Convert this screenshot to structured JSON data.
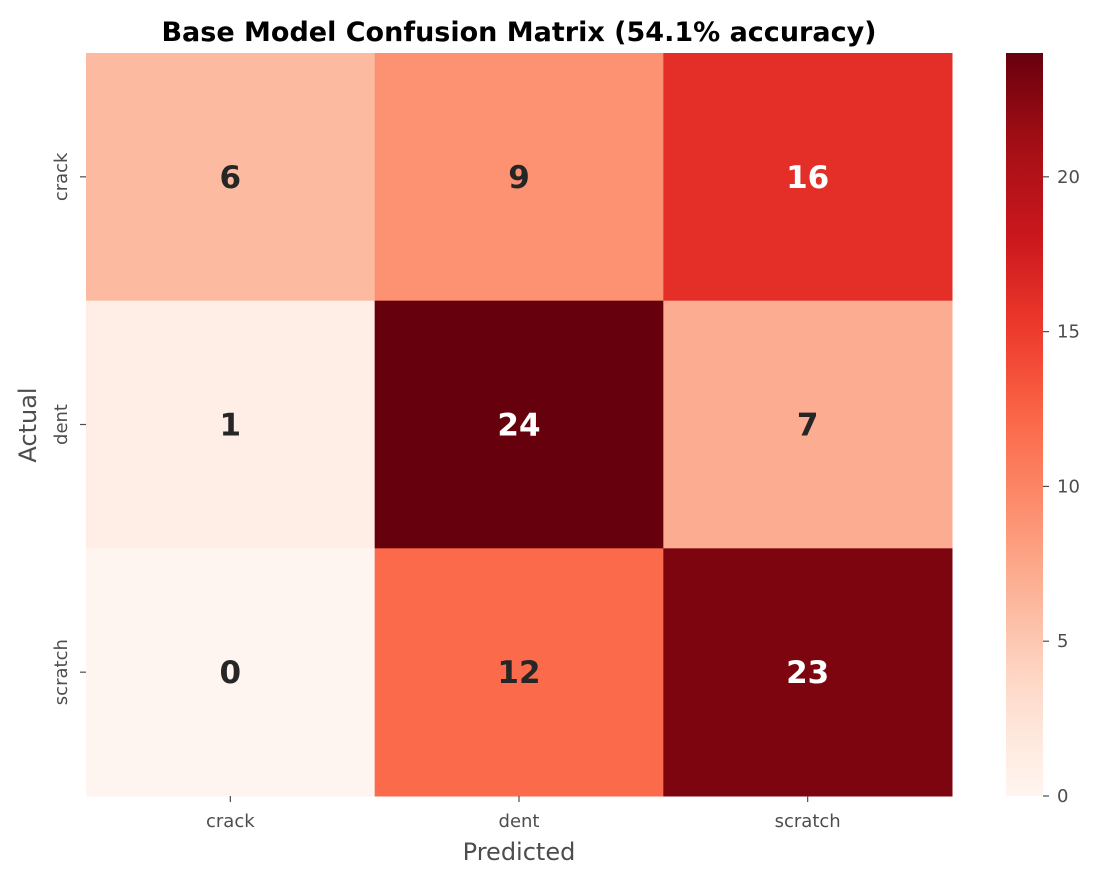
{
  "chart_data": {
    "type": "heatmap",
    "title": "Base Model Confusion Matrix (54.1% accuracy)",
    "xlabel": "Predicted",
    "ylabel": "Actual",
    "x_categories": [
      "crack",
      "dent",
      "scratch"
    ],
    "y_categories": [
      "crack",
      "dent",
      "scratch"
    ],
    "values": [
      [
        6,
        9,
        16
      ],
      [
        1,
        24,
        7
      ],
      [
        0,
        12,
        23
      ]
    ],
    "colormap": "Reds",
    "vmin": 0,
    "vmax": 24,
    "colorbar_ticks": [
      0,
      5,
      10,
      15,
      20
    ],
    "colorbar_tick_labels": [
      "0",
      "5",
      "10",
      "15",
      "20"
    ],
    "colors": {
      "dark_text": "#262626",
      "light_text": "#ffffff",
      "axis_text": "#4d4d4d"
    }
  }
}
